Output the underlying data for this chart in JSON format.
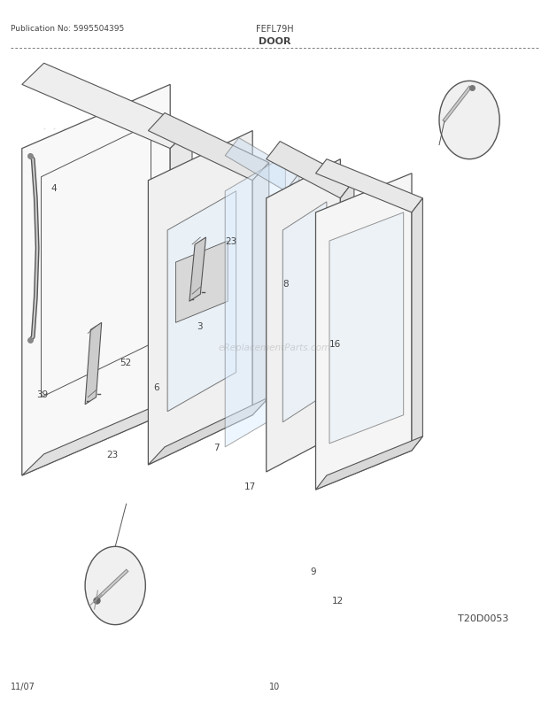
{
  "title_left": "Publication No: 5995504395",
  "title_center": "FEFL79H",
  "title_sub": "DOOR",
  "footer_left": "11/07",
  "footer_center": "10",
  "diagram_id": "T20D0053",
  "watermark": "eReplacementParts.com",
  "bg_color": "#ffffff",
  "line_color": "#555555",
  "text_color": "#444444"
}
